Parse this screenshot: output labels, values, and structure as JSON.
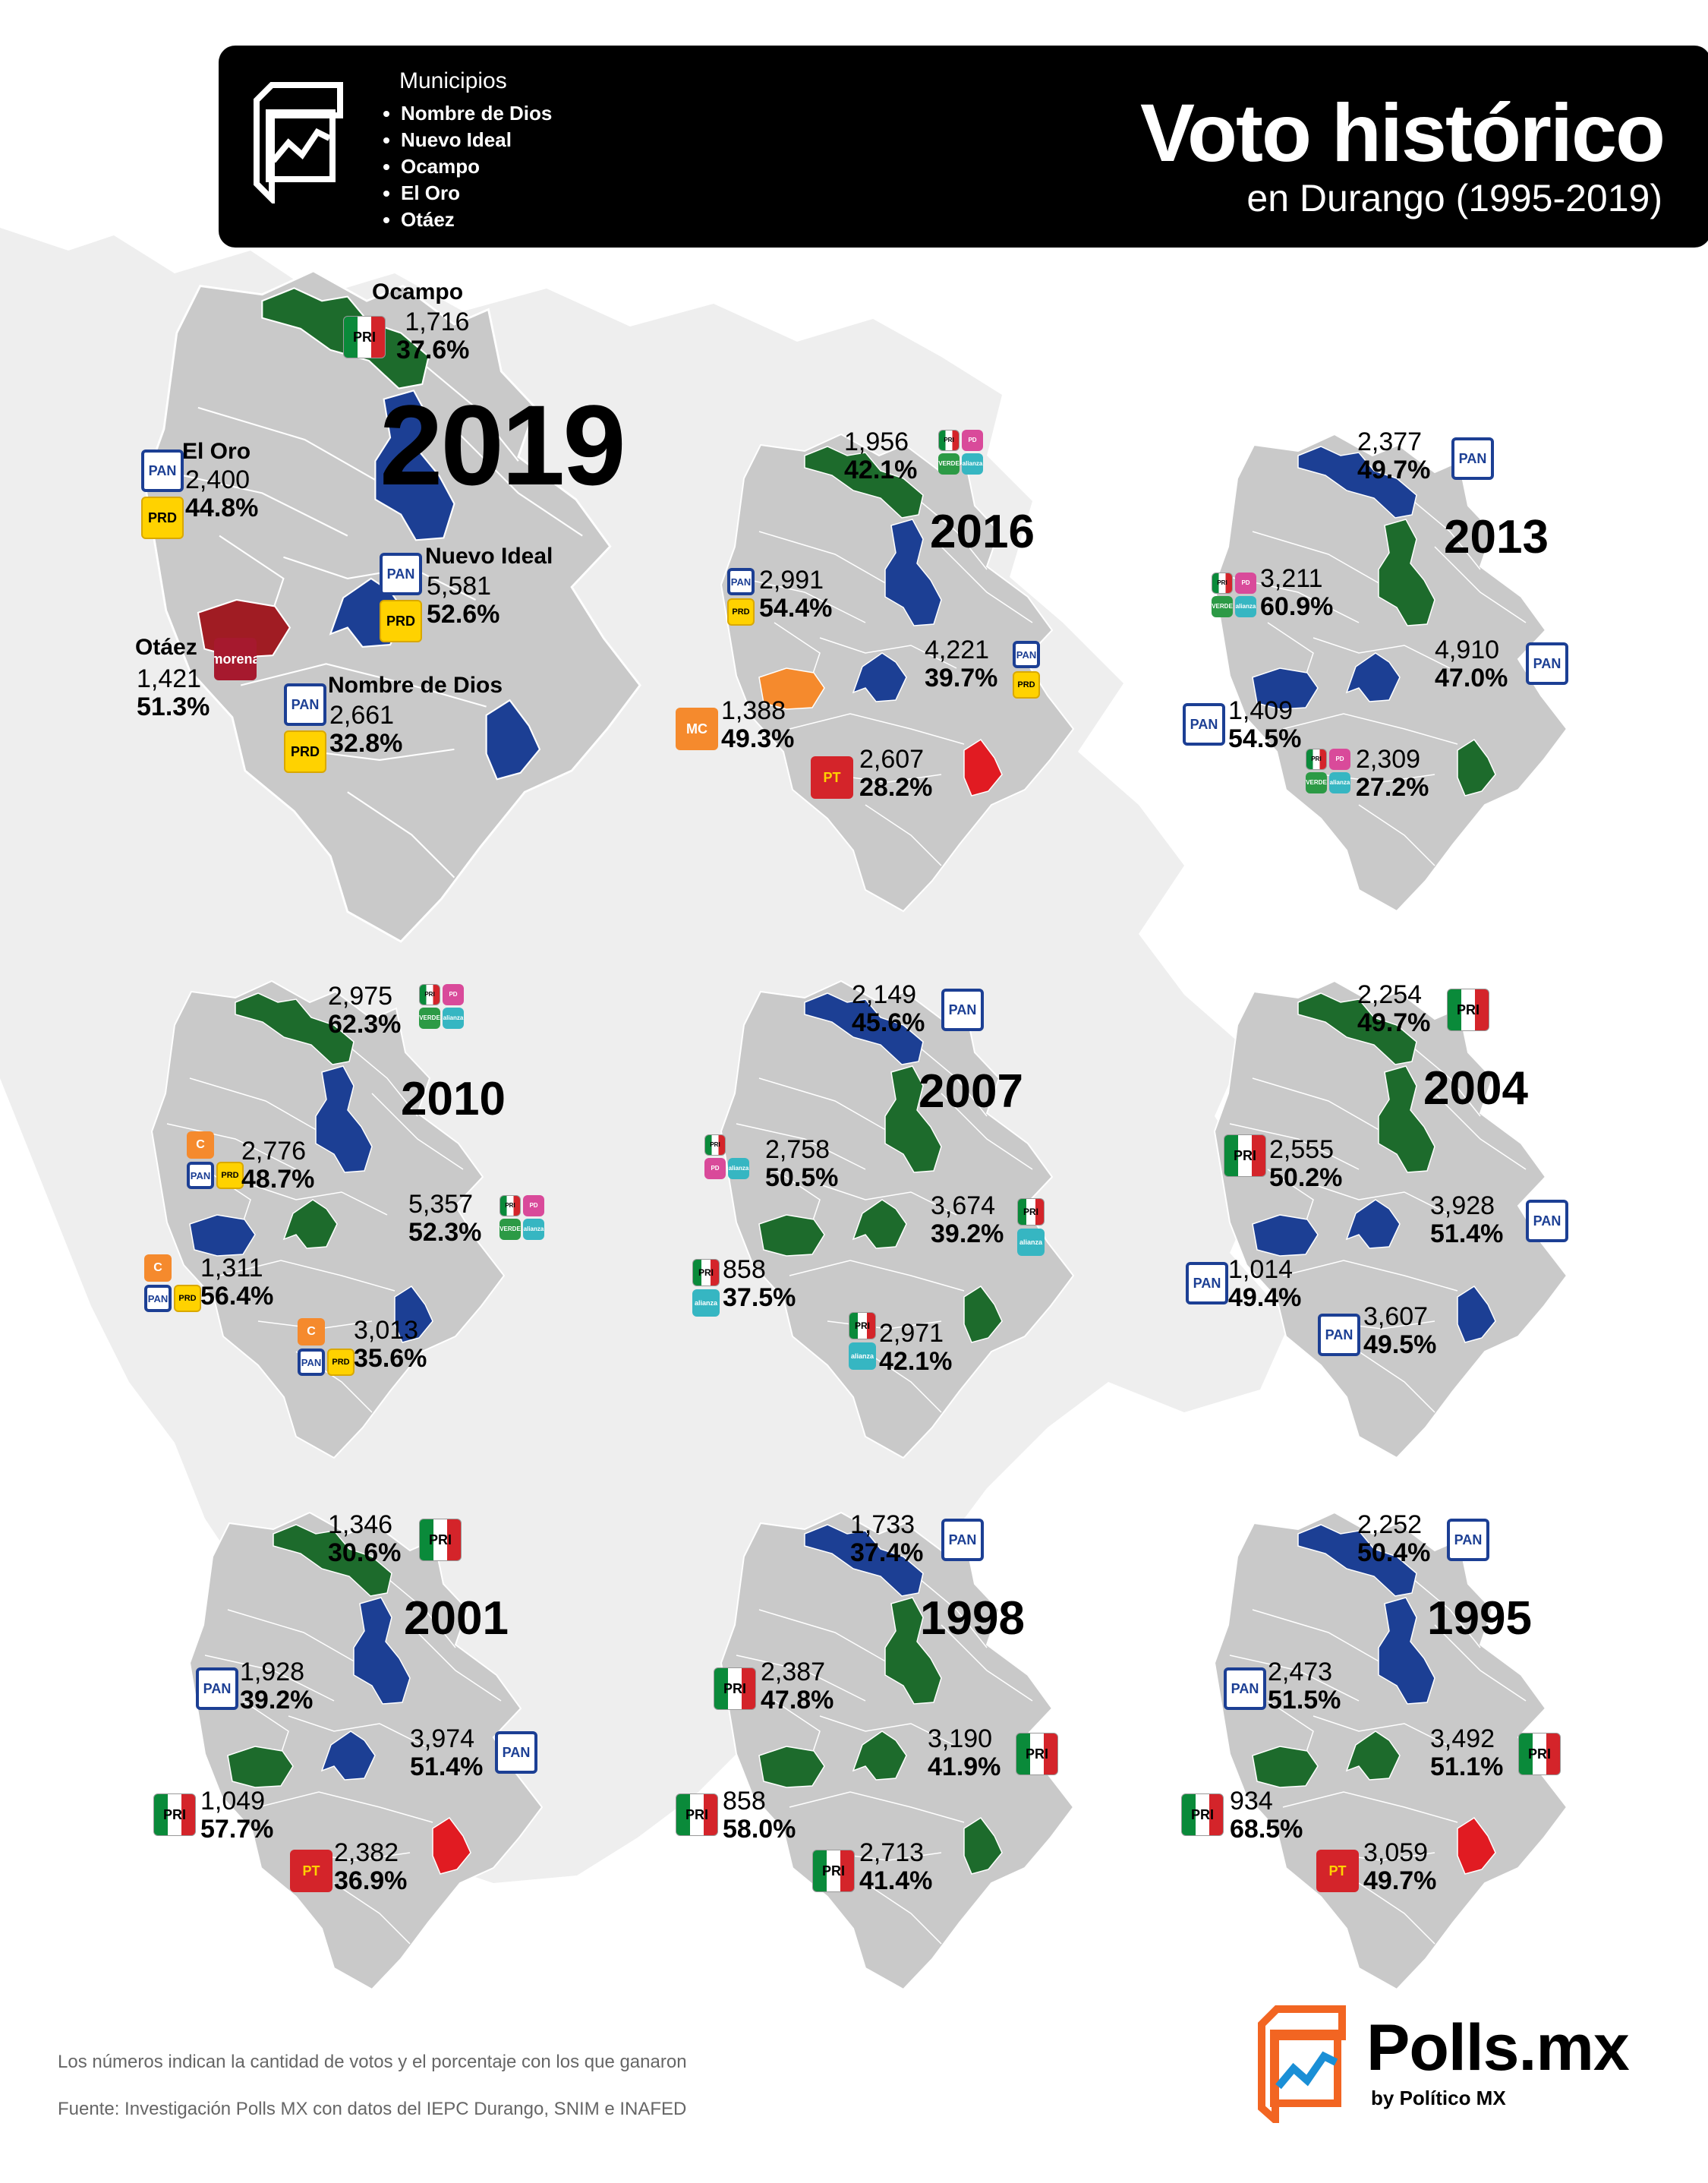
{
  "header": {
    "municipios_title": "Municipios",
    "municipios": [
      "Nombre de Dios",
      "Nuevo Ideal",
      "Ocampo",
      "El Oro",
      "Otáez"
    ],
    "title": "Voto histórico",
    "subtitle": "en Durango (1995-2019)"
  },
  "colors": {
    "PAN": "#1c3f94",
    "PRI": "#1d6b2c",
    "MORENA": "#a01c23",
    "MC": "#f58a2d",
    "PT": "#e11b22",
    "map_base": "#c9c9c9",
    "background_silhouette": "#eeeeee"
  },
  "maps": [
    {
      "year": "2019",
      "winners": {
        "Ocampo": "PRI",
        "ElOro": "PAN",
        "NuevoIdeal": "PAN",
        "Otaez": "MORENA",
        "NombreDeDios": "PAN"
      },
      "labels": {
        "Ocampo": {
          "name": "Ocampo",
          "votes": "1,716",
          "pct": "37.6%",
          "parties": [
            "PRI"
          ]
        },
        "ElOro": {
          "name": "El Oro",
          "votes": "2,400",
          "pct": "44.8%",
          "parties": [
            "PAN",
            "PRD"
          ]
        },
        "NuevoIdeal": {
          "name": "Nuevo Ideal",
          "votes": "5,581",
          "pct": "52.6%",
          "parties": [
            "PAN",
            "PRD"
          ]
        },
        "Otaez": {
          "name": "Otáez",
          "votes": "1,421",
          "pct": "51.3%",
          "parties": [
            "MORENA"
          ]
        },
        "NombreDeDios": {
          "name": "Nombre de Dios",
          "votes": "2,661",
          "pct": "32.8%",
          "parties": [
            "PAN",
            "PRD"
          ]
        }
      }
    },
    {
      "year": "2016",
      "winners": {
        "Ocampo": "PRI",
        "ElOro": "PAN",
        "NuevoIdeal": "PAN",
        "Otaez": "MC",
        "NombreDeDios": "PT"
      },
      "labels": {
        "Ocampo": {
          "votes": "1,956",
          "pct": "42.1%",
          "parties": [
            "PRI",
            "PD",
            "PVEM",
            "PNA"
          ]
        },
        "ElOro": {
          "votes": "2,991",
          "pct": "54.4%",
          "parties": [
            "PAN",
            "PRD"
          ]
        },
        "NuevoIdeal": {
          "votes": "4,221",
          "pct": "39.7%",
          "parties": [
            "PAN",
            "PRD"
          ]
        },
        "Otaez": {
          "votes": "1,388",
          "pct": "49.3%",
          "parties": [
            "MC"
          ]
        },
        "NombreDeDios": {
          "votes": "2,607",
          "pct": "28.2%",
          "parties": [
            "PT"
          ]
        }
      }
    },
    {
      "year": "2013",
      "winners": {
        "Ocampo": "PAN",
        "ElOro": "PRI",
        "NuevoIdeal": "PAN",
        "Otaez": "PAN",
        "NombreDeDios": "PRI"
      },
      "labels": {
        "Ocampo": {
          "votes": "2,377",
          "pct": "49.7%",
          "parties": [
            "PAN"
          ]
        },
        "ElOro": {
          "votes": "3,211",
          "pct": "60.9%",
          "parties": [
            "PRI",
            "PD",
            "PVEM",
            "PNA"
          ]
        },
        "NuevoIdeal": {
          "votes": "4,910",
          "pct": "47.0%",
          "parties": [
            "PAN"
          ]
        },
        "Otaez": {
          "votes": "1,409",
          "pct": "54.5%",
          "parties": [
            "PAN"
          ]
        },
        "NombreDeDios": {
          "votes": "2,309",
          "pct": "27.2%",
          "parties": [
            "PRI",
            "PD",
            "PVEM",
            "PNA"
          ]
        }
      }
    },
    {
      "year": "2010",
      "winners": {
        "Ocampo": "PRI",
        "ElOro": "PAN",
        "NuevoIdeal": "PRI",
        "Otaez": "PAN",
        "NombreDeDios": "PAN"
      },
      "labels": {
        "Ocampo": {
          "votes": "2,975",
          "pct": "62.3%",
          "parties": [
            "PRI",
            "PD",
            "PVEM",
            "PNA"
          ]
        },
        "ElOro": {
          "votes": "2,776",
          "pct": "48.7%",
          "parties": [
            "CONV",
            "PAN",
            "PRD"
          ]
        },
        "NuevoIdeal": {
          "votes": "5,357",
          "pct": "52.3%",
          "parties": [
            "PRI",
            "PD",
            "PVEM",
            "PNA"
          ]
        },
        "Otaez": {
          "votes": "1,311",
          "pct": "56.4%",
          "parties": [
            "CONV",
            "PAN",
            "PRD"
          ]
        },
        "NombreDeDios": {
          "votes": "3,013",
          "pct": "35.6%",
          "parties": [
            "CONV",
            "PAN",
            "PRD"
          ]
        }
      }
    },
    {
      "year": "2007",
      "winners": {
        "Ocampo": "PAN",
        "ElOro": "PRI",
        "NuevoIdeal": "PRI",
        "Otaez": "PRI",
        "NombreDeDios": "PRI"
      },
      "labels": {
        "Ocampo": {
          "votes": "2,149",
          "pct": "45.6%",
          "parties": [
            "PAN"
          ]
        },
        "ElOro": {
          "votes": "2,758",
          "pct": "50.5%",
          "parties": [
            "PRI",
            "PD",
            "PNA"
          ]
        },
        "NuevoIdeal": {
          "votes": "3,674",
          "pct": "39.2%",
          "parties": [
            "PRI",
            "PNA"
          ]
        },
        "Otaez": {
          "votes": "858",
          "pct": "37.5%",
          "parties": [
            "PRI",
            "PNA"
          ]
        },
        "NombreDeDios": {
          "votes": "2,971",
          "pct": "42.1%",
          "parties": [
            "PRI",
            "PNA"
          ]
        }
      }
    },
    {
      "year": "2004",
      "winners": {
        "Ocampo": "PRI",
        "ElOro": "PRI",
        "NuevoIdeal": "PAN",
        "Otaez": "PAN",
        "NombreDeDios": "PAN"
      },
      "labels": {
        "Ocampo": {
          "votes": "2,254",
          "pct": "49.7%",
          "parties": [
            "PRI"
          ]
        },
        "ElOro": {
          "votes": "2,555",
          "pct": "50.2%",
          "parties": [
            "PRI"
          ]
        },
        "NuevoIdeal": {
          "votes": "3,928",
          "pct": "51.4%",
          "parties": [
            "PAN"
          ]
        },
        "Otaez": {
          "votes": "1,014",
          "pct": "49.4%",
          "parties": [
            "PAN"
          ]
        },
        "NombreDeDios": {
          "votes": "3,607",
          "pct": "49.5%",
          "parties": [
            "PAN"
          ]
        }
      }
    },
    {
      "year": "2001",
      "winners": {
        "Ocampo": "PRI",
        "ElOro": "PAN",
        "NuevoIdeal": "PAN",
        "Otaez": "PRI",
        "NombreDeDios": "PT"
      },
      "labels": {
        "Ocampo": {
          "votes": "1,346",
          "pct": "30.6%",
          "parties": [
            "PRI"
          ]
        },
        "ElOro": {
          "votes": "1,928",
          "pct": "39.2%",
          "parties": [
            "PAN"
          ]
        },
        "NuevoIdeal": {
          "votes": "3,974",
          "pct": "51.4%",
          "parties": [
            "PAN"
          ]
        },
        "Otaez": {
          "votes": "1,049",
          "pct": "57.7%",
          "parties": [
            "PRI"
          ]
        },
        "NombreDeDios": {
          "votes": "2,382",
          "pct": "36.9%",
          "parties": [
            "PT"
          ]
        }
      }
    },
    {
      "year": "1998",
      "winners": {
        "Ocampo": "PAN",
        "ElOro": "PRI",
        "NuevoIdeal": "PRI",
        "Otaez": "PRI",
        "NombreDeDios": "PRI"
      },
      "labels": {
        "Ocampo": {
          "votes": "1,733",
          "pct": "37.4%",
          "parties": [
            "PAN"
          ]
        },
        "ElOro": {
          "votes": "2,387",
          "pct": "47.8%",
          "parties": [
            "PRI"
          ]
        },
        "NuevoIdeal": {
          "votes": "3,190",
          "pct": "41.9%",
          "parties": [
            "PRI"
          ]
        },
        "Otaez": {
          "votes": "858",
          "pct": "58.0%",
          "parties": [
            "PRI"
          ]
        },
        "NombreDeDios": {
          "votes": "2,713",
          "pct": "41.4%",
          "parties": [
            "PRI"
          ]
        }
      }
    },
    {
      "year": "1995",
      "winners": {
        "Ocampo": "PAN",
        "ElOro": "PAN",
        "NuevoIdeal": "PRI",
        "Otaez": "PRI",
        "NombreDeDios": "PT"
      },
      "labels": {
        "Ocampo": {
          "votes": "2,252",
          "pct": "50.4%",
          "parties": [
            "PAN"
          ]
        },
        "ElOro": {
          "votes": "2,473",
          "pct": "51.5%",
          "parties": [
            "PAN"
          ]
        },
        "NuevoIdeal": {
          "votes": "3,492",
          "pct": "51.1%",
          "parties": [
            "PRI"
          ]
        },
        "Otaez": {
          "votes": "934",
          "pct": "68.5%",
          "parties": [
            "PRI"
          ]
        },
        "NombreDeDios": {
          "votes": "3,059",
          "pct": "49.7%",
          "parties": [
            "PT"
          ]
        }
      }
    }
  ],
  "party_logos": {
    "PAN": "PAN",
    "PRD": "PRD",
    "PRI": "PRI",
    "PT": "PT",
    "MORENA": "morena",
    "MC": "MC",
    "PVEM": "VERDE",
    "PNA": "alianza",
    "PD": "PD",
    "CONV": "C"
  },
  "footer": {
    "note": "Los números indican la cantidad de votos y el porcentaje con los que ganaron",
    "source": "Fuente: Investigación Polls MX con datos del IEPC Durango, SNIM e INAFED"
  },
  "brand": {
    "name": "Polls.mx",
    "byline": "by Político MX"
  }
}
